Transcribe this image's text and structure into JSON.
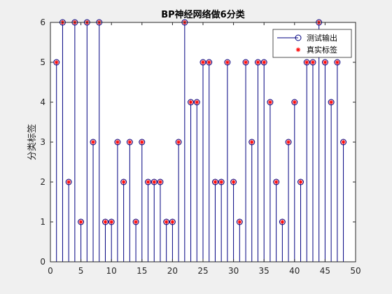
{
  "chart_data": {
    "type": "stem",
    "title": "BP神经网络做6分类",
    "xlabel": "",
    "ylabel": "分类标签",
    "xlim": [
      0,
      50
    ],
    "ylim": [
      0,
      6
    ],
    "xticks": [
      0,
      5,
      10,
      15,
      20,
      25,
      30,
      35,
      40,
      45,
      50
    ],
    "yticks": [
      0,
      1,
      2,
      3,
      4,
      5,
      6
    ],
    "grid": false,
    "legend_position": "top-right",
    "series": [
      {
        "name": "测试输出",
        "style": "stem-circle",
        "color": "#000080",
        "values": [
          5,
          6,
          2,
          6,
          1,
          6,
          3,
          6,
          1,
          1,
          3,
          2,
          3,
          1,
          3,
          2,
          2,
          2,
          1,
          1,
          3,
          6,
          4,
          4,
          5,
          5,
          2,
          2,
          5,
          2,
          1,
          5,
          3,
          5,
          5,
          4,
          2,
          1,
          3,
          4,
          2,
          5,
          5,
          6,
          5,
          4,
          5,
          3
        ]
      },
      {
        "name": "真实标签",
        "style": "asterisk",
        "color": "#ff0000",
        "values": [
          5,
          6,
          2,
          6,
          1,
          6,
          3,
          6,
          1,
          1,
          3,
          2,
          3,
          1,
          3,
          2,
          2,
          2,
          1,
          1,
          3,
          6,
          4,
          4,
          5,
          5,
          2,
          2,
          5,
          2,
          1,
          5,
          3,
          5,
          5,
          4,
          2,
          1,
          3,
          4,
          2,
          5,
          5,
          6,
          5,
          4,
          5,
          3
        ]
      }
    ],
    "x_start": 1
  }
}
